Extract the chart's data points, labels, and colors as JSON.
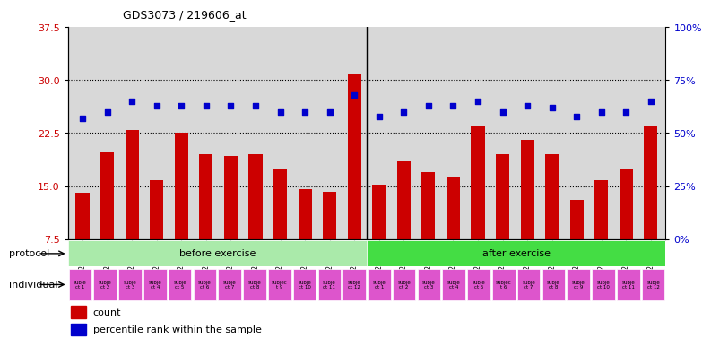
{
  "title": "GDS3073 / 219606_at",
  "samples": [
    "GSM214982",
    "GSM214984",
    "GSM214986",
    "GSM214988",
    "GSM214990",
    "GSM214992",
    "GSM214994",
    "GSM214996",
    "GSM214998",
    "GSM215000",
    "GSM215002",
    "GSM215004",
    "GSM214983",
    "GSM214985",
    "GSM214987",
    "GSM214989",
    "GSM214991",
    "GSM214993",
    "GSM214995",
    "GSM214997",
    "GSM214999",
    "GSM215001",
    "GSM215003",
    "GSM215005"
  ],
  "bar_values": [
    14.0,
    19.8,
    23.0,
    15.8,
    22.5,
    19.5,
    19.3,
    19.5,
    17.5,
    14.5,
    14.2,
    31.0,
    15.2,
    18.5,
    17.0,
    16.2,
    23.5,
    19.5,
    21.5,
    19.5,
    13.0,
    15.8,
    17.5,
    23.5
  ],
  "dot_values": [
    57,
    60,
    65,
    63,
    63,
    63,
    63,
    63,
    60,
    60,
    60,
    68,
    58,
    60,
    63,
    63,
    65,
    60,
    63,
    62,
    58,
    60,
    60,
    65
  ],
  "bar_color": "#cc0000",
  "dot_color": "#0000cc",
  "ylim_left": [
    7.5,
    37.5
  ],
  "ylim_right": [
    0,
    100
  ],
  "yticks_left": [
    7.5,
    15.0,
    22.5,
    30.0,
    37.5
  ],
  "yticks_right": [
    0,
    25,
    50,
    75,
    100
  ],
  "hlines": [
    15.0,
    22.5,
    30.0
  ],
  "protocol_before_label": "before exercise",
  "protocol_after_label": "after exercise",
  "protocol_before_color": "#aaeaaa",
  "protocol_after_color": "#44dd44",
  "individual_color": "#dd55cc",
  "individual_labels_before": [
    "subje\nct 1",
    "subje\nct 2",
    "subje\nct 3",
    "subje\nct 4",
    "subje\nct 5",
    "subje\nct 6",
    "subje\nct 7",
    "subje\nct 8",
    "subjec\nt 9",
    "subje\nct 10",
    "subje\nct 11",
    "subje\nct 12"
  ],
  "individual_labels_after": [
    "subje\nct 1",
    "subje\nct 2",
    "subje\nct 3",
    "subje\nct 4",
    "subje\nct 5",
    "subjec\nt 6",
    "subje\nct 7",
    "subje\nct 8",
    "subje\nct 9",
    "subje\nct 10",
    "subje\nct 11",
    "subje\nct 12"
  ],
  "protocol_label": "protocol",
  "individual_label": "individual",
  "legend_count": "count",
  "legend_percentile": "percentile rank within the sample",
  "separator_index": 12,
  "plot_bg_color": "#d8d8d8",
  "fig_width": 7.71,
  "fig_height": 3.84,
  "dpi": 100
}
